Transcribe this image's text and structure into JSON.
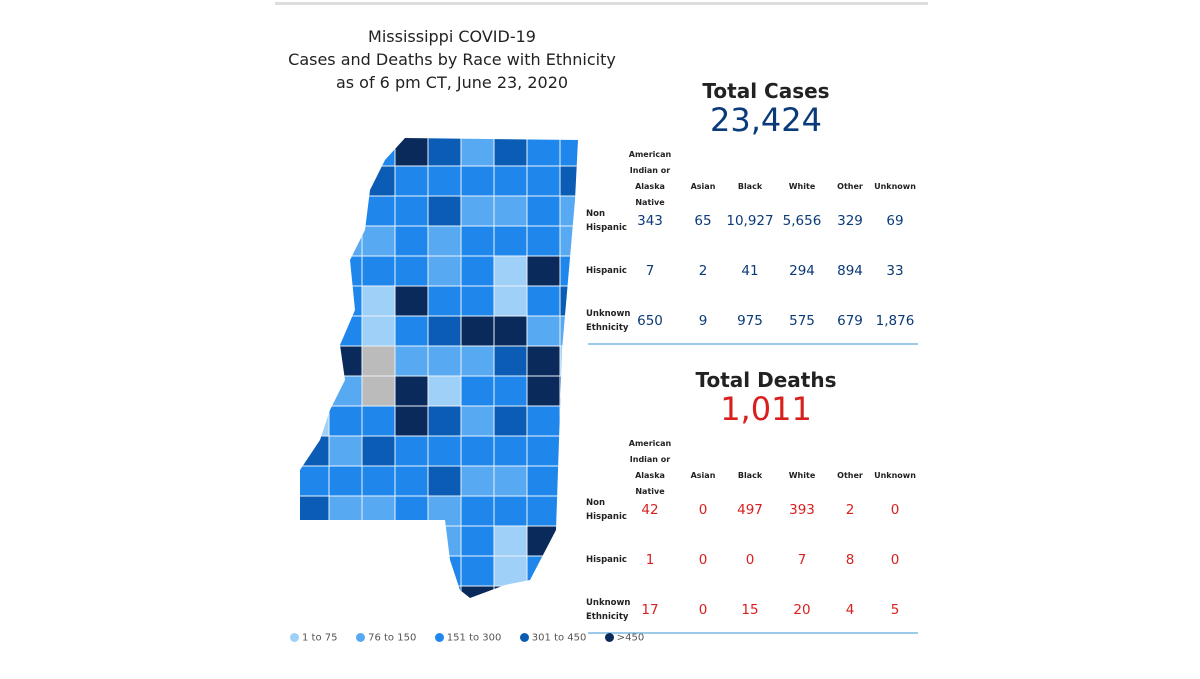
{
  "title": [
    "Mississippi COVID-19",
    "Cases and Deaths by Race with Ethnicity",
    "as of 6 pm CT, June 23, 2020"
  ],
  "cases": {
    "label": "Total Cases",
    "total": "23,424",
    "columns": [
      "American Indian or Alaska Native",
      "Asian",
      "Black",
      "White",
      "Other",
      "Unknown"
    ],
    "rows": [
      {
        "label": "Non Hispanic",
        "values": [
          "343",
          "65",
          "10,927",
          "5,656",
          "329",
          "69"
        ]
      },
      {
        "label": "Hispanic",
        "values": [
          "7",
          "2",
          "41",
          "294",
          "894",
          "33"
        ]
      },
      {
        "label": "Unknown Ethnicity",
        "values": [
          "650",
          "9",
          "975",
          "575",
          "679",
          "1,876"
        ]
      }
    ]
  },
  "deaths": {
    "label": "Total Deaths",
    "total": "1,011",
    "columns": [
      "American Indian or Alaska Native",
      "Asian",
      "Black",
      "White",
      "Other",
      "Unknown"
    ],
    "rows": [
      {
        "label": "Non Hispanic",
        "values": [
          "42",
          "0",
          "497",
          "393",
          "2",
          "0"
        ]
      },
      {
        "label": "Hispanic",
        "values": [
          "1",
          "0",
          "0",
          "7",
          "8",
          "0"
        ]
      },
      {
        "label": "Unknown Ethnicity",
        "values": [
          "17",
          "0",
          "15",
          "20",
          "4",
          "5"
        ]
      }
    ]
  },
  "legend": [
    {
      "label": "1 to 75",
      "color": "#9fd0f7"
    },
    {
      "label": "76 to 150",
      "color": "#57aaf2"
    },
    {
      "label": "151 to 300",
      "color": "#1f86ec"
    },
    {
      "label": "301 to 450",
      "color": "#0a5cb4"
    },
    {
      "label": ">450",
      "color": "#0b2a5c"
    }
  ]
}
